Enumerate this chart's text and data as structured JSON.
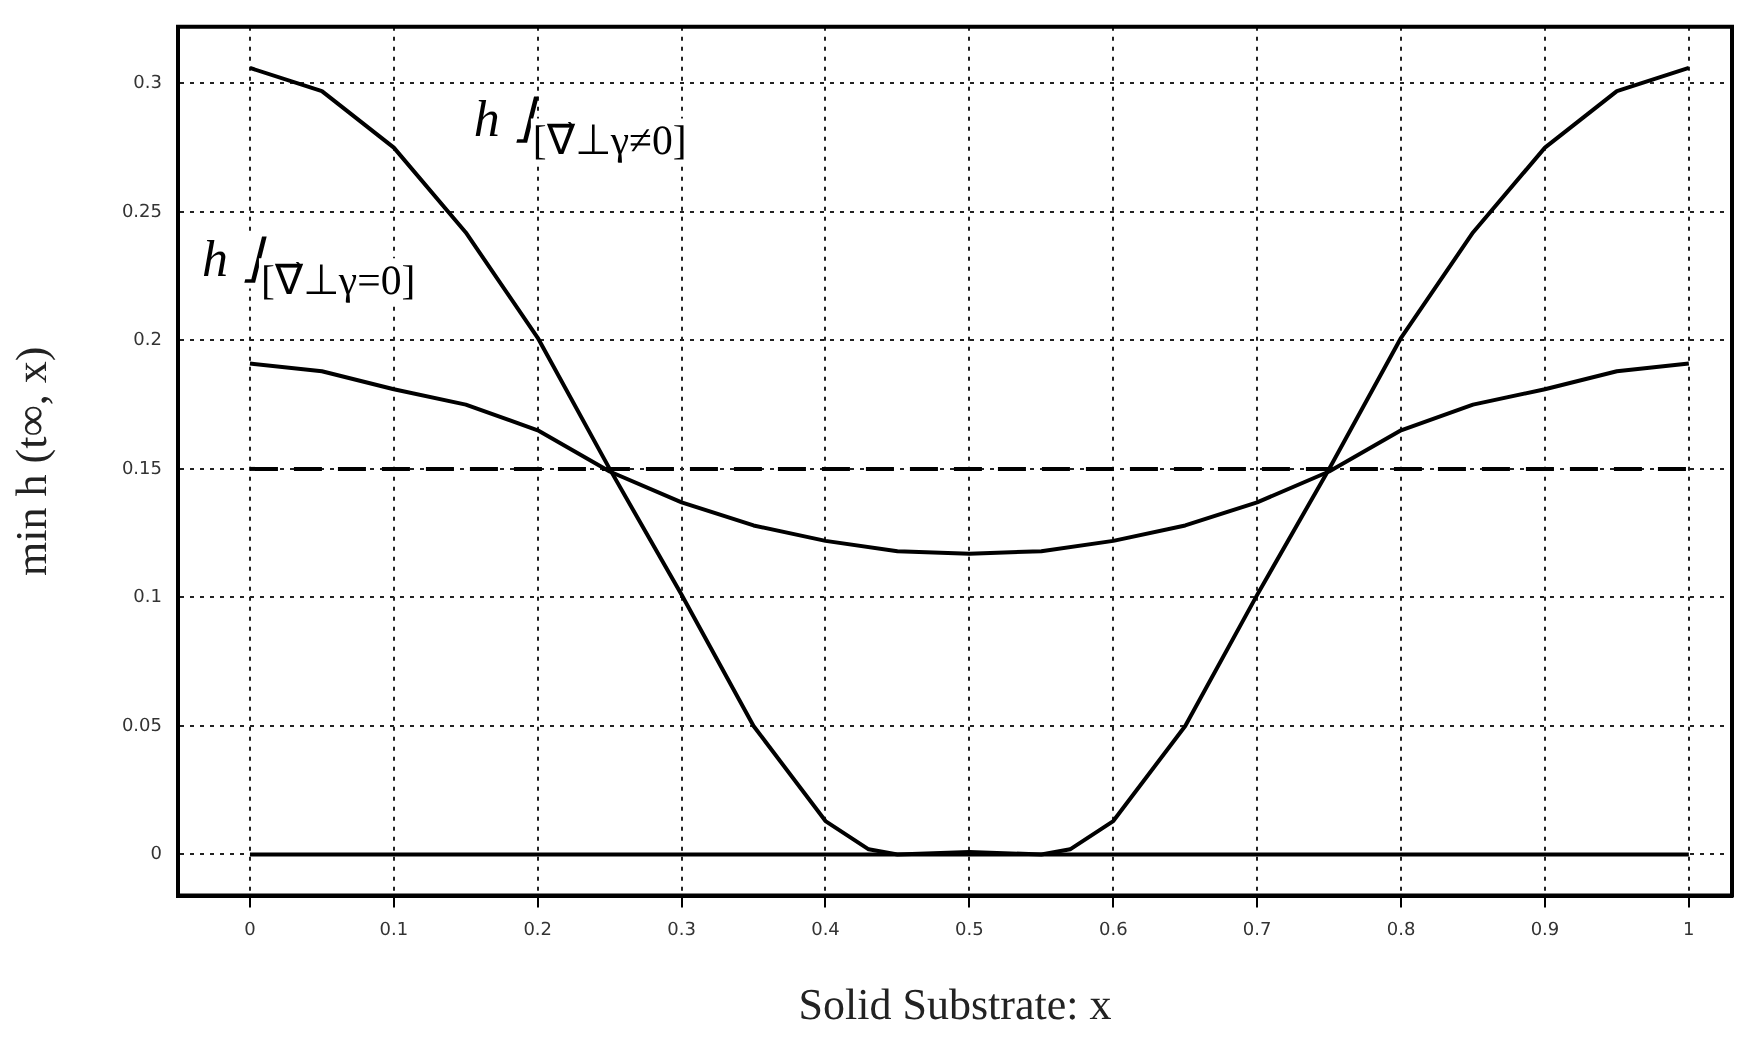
{
  "chart_data": {
    "type": "line",
    "xlabel": "Solid Substrate: x",
    "ylabel": "min h (t∞, x)",
    "xlim": [
      -0.05,
      1.03
    ],
    "ylim": [
      -0.016,
      0.322
    ],
    "xticks": [
      0,
      0.1,
      0.2,
      0.3,
      0.4,
      0.5,
      0.6,
      0.7,
      0.8,
      0.9,
      1
    ],
    "yticks": [
      0,
      0.05,
      0.1,
      0.15,
      0.2,
      0.25,
      0.3
    ],
    "grid": true,
    "legend": false,
    "marker": "none",
    "series": [
      {
        "name": "h ⌋$_{[∇⃗⊥γ≠0]}$",
        "color": "#000000",
        "x": [
          0,
          0.05,
          0.1,
          0.15,
          0.2,
          0.25,
          0.3,
          0.35,
          0.4,
          0.43,
          0.45,
          0.5,
          0.55,
          0.57,
          0.6,
          0.65,
          0.7,
          0.75,
          0.8,
          0.85,
          0.9,
          0.95,
          1
        ],
        "values": [
          0.306,
          0.297,
          0.275,
          0.242,
          0.201,
          0.15,
          0.101,
          0.05,
          0.013,
          0.002,
          0,
          0.001,
          0,
          0.002,
          0.013,
          0.05,
          0.101,
          0.15,
          0.201,
          0.242,
          0.275,
          0.297,
          0.306
        ]
      },
      {
        "name": "h ⌋$_{[∇⃗⊥γ=0]}$",
        "color": "#000000",
        "x": [
          0,
          0.05,
          0.1,
          0.15,
          0.2,
          0.25,
          0.3,
          0.35,
          0.4,
          0.45,
          0.5,
          0.55,
          0.6,
          0.65,
          0.7,
          0.75,
          0.8,
          0.85,
          0.9,
          0.95,
          1
        ],
        "values": [
          0.191,
          0.188,
          0.181,
          0.175,
          0.165,
          0.149,
          0.137,
          0.128,
          0.122,
          0.118,
          0.117,
          0.118,
          0.122,
          0.128,
          0.137,
          0.149,
          0.165,
          0.175,
          0.181,
          0.188,
          0.191
        ]
      },
      {
        "color": "#000000",
        "line_style": "dashed",
        "x": [
          0,
          1
        ],
        "values": [
          0.15,
          0.15
        ]
      },
      {
        "color": "#000000",
        "x": [
          0,
          1
        ],
        "values": [
          0,
          0
        ]
      }
    ]
  }
}
